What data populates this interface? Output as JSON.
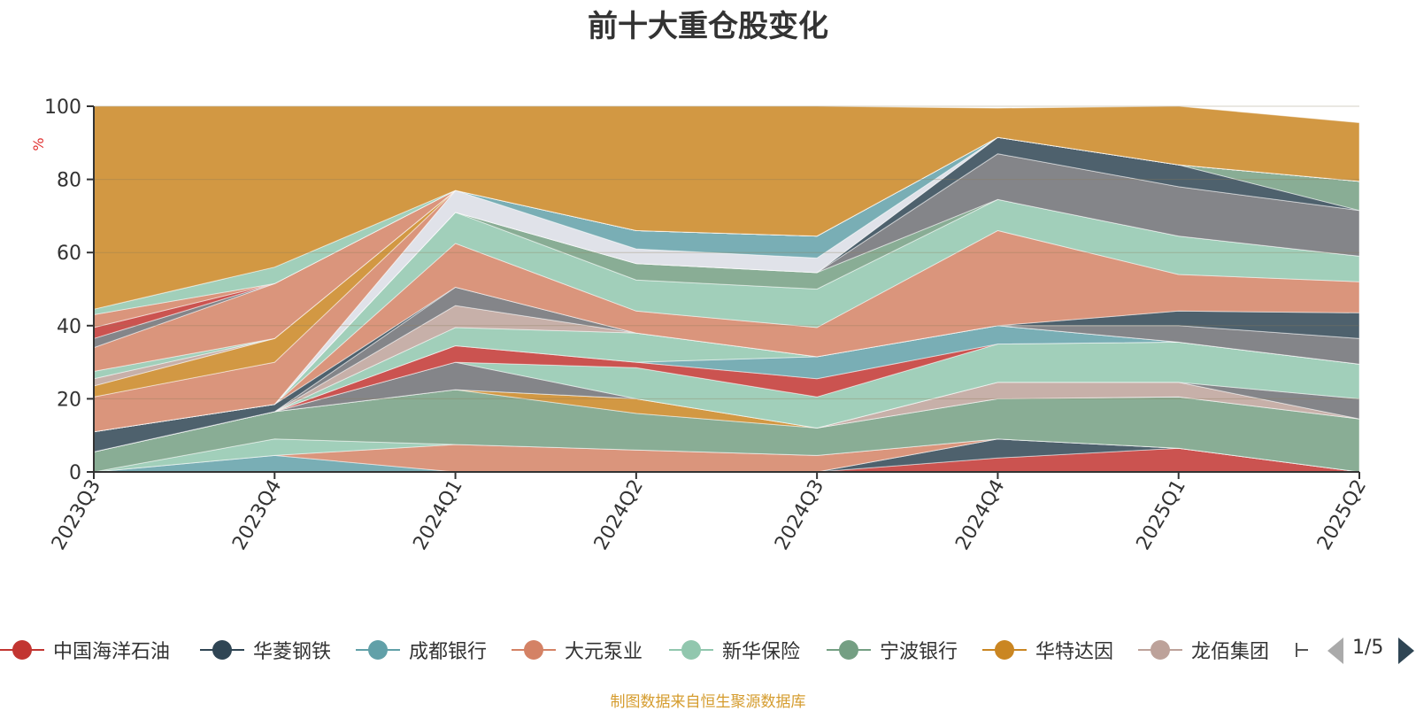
{
  "chart_data": {
    "type": "area",
    "stacked": true,
    "title": "前十大重仓股变化",
    "ylabel": "%",
    "xlabel": "",
    "ylim": [
      0,
      100
    ],
    "y_ticks": [
      "0",
      "20",
      "40",
      "60",
      "80",
      "100"
    ],
    "x": [
      "2023Q3",
      "2023Q4",
      "2024Q1",
      "2024Q2",
      "2024Q3",
      "2024Q4",
      "2025Q1",
      "2025Q2"
    ],
    "grid": true,
    "legend_position": "bottom",
    "series": [
      {
        "name": "中国海洋石油",
        "color": "#c23531",
        "values": [
          0,
          0,
          0,
          0,
          0,
          3.8,
          6.5,
          0
        ]
      },
      {
        "name": "华菱钢铁",
        "color": "#2f4554",
        "values": [
          0,
          0,
          0,
          0,
          0,
          5.2,
          0,
          0
        ]
      },
      {
        "name": "成都银行",
        "color": "#61a0a8",
        "values": [
          0,
          4.5,
          0,
          0,
          0,
          0,
          0,
          0
        ]
      },
      {
        "name": "大元泵业",
        "color": "#d48265",
        "values": [
          0,
          0,
          7.5,
          6,
          4.5,
          0,
          0,
          0
        ]
      },
      {
        "name": "新华保险",
        "color": "#91c7ae",
        "values": [
          0,
          4.5,
          0,
          0,
          0,
          0,
          0,
          0
        ]
      },
      {
        "name": "宁波银行",
        "color": "#749f83",
        "values": [
          5.5,
          7.5,
          15,
          10,
          7.5,
          11,
          14,
          14.5
        ]
      },
      {
        "name": "华特达因",
        "color": "#ca8622",
        "values": [
          0,
          0,
          0,
          4,
          0,
          0,
          0,
          0
        ]
      },
      {
        "name": "龙佰集团",
        "color": "#bda29a",
        "values": [
          0,
          0,
          0,
          0,
          0,
          4.5,
          4,
          0
        ]
      },
      {
        "name": "",
        "color": "#6e7074",
        "values": [
          0,
          0,
          7.5,
          0,
          0,
          0,
          0,
          5.5
        ]
      },
      {
        "name": "",
        "color": "#91c7ae",
        "values": [
          0,
          0,
          0,
          8.5,
          8.5,
          10.5,
          11,
          9.5
        ]
      },
      {
        "name": "",
        "color": "#c23531",
        "values": [
          0,
          0,
          4.5,
          1.5,
          5,
          0,
          0,
          0
        ]
      },
      {
        "name": "",
        "color": "#61a0a8",
        "values": [
          0,
          0,
          0,
          0,
          6,
          5,
          0,
          0
        ]
      },
      {
        "name": "",
        "color": "#91c7ae",
        "values": [
          0,
          0,
          5,
          8,
          0,
          0,
          0,
          0
        ]
      },
      {
        "name": "",
        "color": "#bda29a",
        "values": [
          0,
          0,
          6,
          0,
          0,
          0,
          0,
          0
        ]
      },
      {
        "name": "",
        "color": "#6e7074",
        "values": [
          0,
          0,
          5,
          0,
          0,
          0,
          4.5,
          7
        ]
      },
      {
        "name": "",
        "color": "#2f4554",
        "values": [
          5.5,
          2,
          0,
          0,
          0,
          0,
          4,
          7
        ]
      },
      {
        "name": "",
        "color": "#d48265",
        "values": [
          0,
          0,
          12,
          6,
          8,
          26,
          10,
          8.5
        ]
      },
      {
        "name": "",
        "color": "#91c7ae",
        "values": [
          0,
          0,
          8.5,
          8.5,
          10.5,
          8.5,
          10.5,
          7
        ]
      },
      {
        "name": "",
        "color": "#749f83",
        "values": [
          0,
          0,
          0,
          4.5,
          4.5,
          0,
          0,
          0
        ]
      },
      {
        "name": "",
        "color": "#6e7074",
        "values": [
          0,
          0,
          0,
          0,
          0,
          12.5,
          13.5,
          12.5
        ]
      },
      {
        "name": "",
        "color": "#2f4554",
        "values": [
          0,
          0,
          0,
          0,
          0,
          4.5,
          6,
          0
        ]
      },
      {
        "name": "",
        "color": "#749f83",
        "values": [
          0,
          0,
          0,
          0,
          0,
          0,
          0,
          8
        ]
      },
      {
        "name": "",
        "color": "#dadde5",
        "values": [
          0,
          0,
          6,
          4,
          4,
          0,
          0,
          0
        ]
      },
      {
        "name": "",
        "color": "#61a0a8",
        "values": [
          0,
          0,
          0,
          5,
          6,
          0,
          0,
          0
        ]
      },
      {
        "name": "",
        "color": "#d48265",
        "values": [
          9.5,
          11.5,
          0,
          0,
          0,
          0,
          0,
          0
        ]
      },
      {
        "name": "",
        "color": "#ca8622",
        "values": [
          3,
          6.5,
          0,
          0,
          0,
          0,
          0,
          0
        ]
      },
      {
        "name": "",
        "color": "#bda29a",
        "values": [
          2,
          0,
          0,
          0,
          0,
          0,
          0,
          0
        ]
      },
      {
        "name": "",
        "color": "#91c7ae",
        "values": [
          2,
          0,
          0,
          0,
          0,
          0,
          0,
          0
        ]
      },
      {
        "name": "",
        "color": "#d48265",
        "values": [
          6.5,
          15,
          0,
          0,
          0,
          0,
          0,
          0
        ]
      },
      {
        "name": "",
        "color": "#6e7074",
        "values": [
          2.5,
          0,
          0,
          0,
          0,
          0,
          0,
          0
        ]
      },
      {
        "name": "",
        "color": "#c23531",
        "values": [
          3,
          0,
          0,
          0,
          0,
          0,
          0,
          0
        ]
      },
      {
        "name": "",
        "color": "#d48265",
        "values": [
          3.5,
          0,
          0,
          0,
          0,
          0,
          0,
          0
        ]
      },
      {
        "name": "",
        "color": "#91c7ae",
        "values": [
          1.5,
          4.5,
          0,
          0,
          0,
          0,
          0,
          0
        ]
      },
      {
        "name": "",
        "color": "#ca8622",
        "values": [
          58,
          47,
          24,
          38.5,
          35.5,
          8,
          16,
          16
        ]
      }
    ]
  },
  "legend": {
    "items": [
      {
        "label": "中国海洋石油",
        "color": "#c23531"
      },
      {
        "label": "华菱钢铁",
        "color": "#2f4554"
      },
      {
        "label": "成都银行",
        "color": "#61a0a8"
      },
      {
        "label": "大元泵业",
        "color": "#d48265"
      },
      {
        "label": "新华保险",
        "color": "#91c7ae"
      },
      {
        "label": "宁波银行",
        "color": "#749f83"
      },
      {
        "label": "华特达因",
        "color": "#ca8622"
      },
      {
        "label": "龙佰集团",
        "color": "#bda29a"
      }
    ],
    "page_indicator": "1/5"
  },
  "source_note": "制图数据来自恒生聚源数据库"
}
